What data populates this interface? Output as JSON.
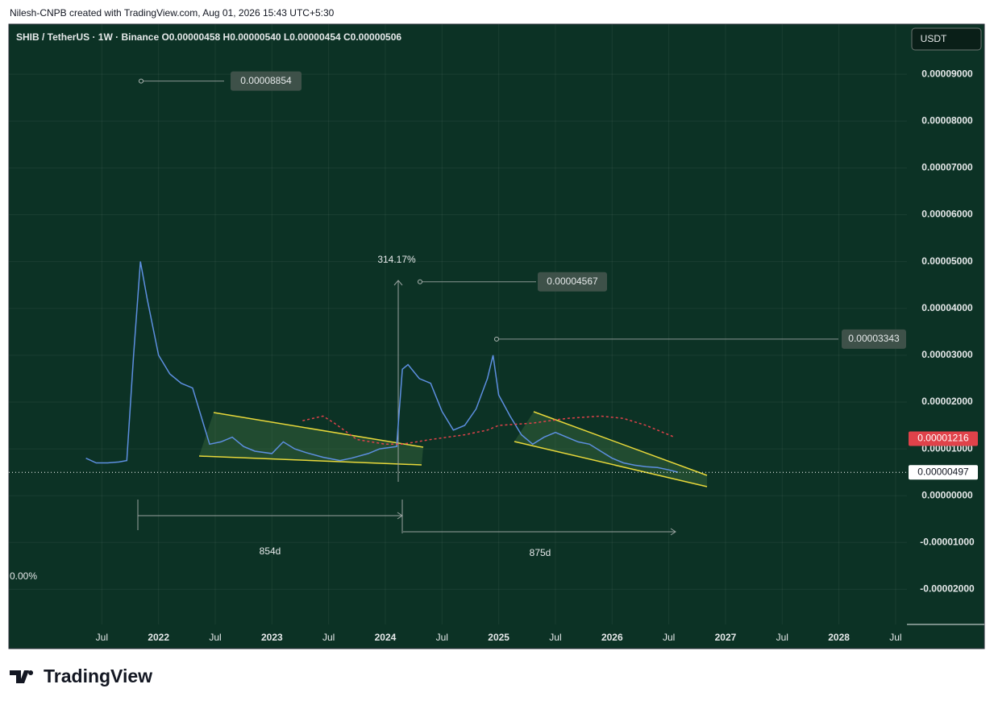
{
  "header": {
    "credit": "Nilesh-CNPB created with TradingView.com, Aug 01, 2026 15:43 UTC+5:30",
    "symbol": "SHIB / TetherUS · 1W · Binance  O0.00000458 H0.00000540 L0.00000454 C0.00000506",
    "currency": "USDT"
  },
  "footer": {
    "brand": "TradingView"
  },
  "chart_data": {
    "type": "line",
    "xlim": [
      2020.68,
      2028.6
    ],
    "ylim": [
      -2.75e-05,
      0.0001007
    ],
    "xticks": [
      {
        "value": 2021.5,
        "label": "Jul"
      },
      2022,
      {
        "value": 2022.5,
        "label": "Jul"
      },
      2023,
      {
        "value": 2023.5,
        "label": "Jul"
      },
      2024,
      {
        "value": 2024.5,
        "label": "Jul"
      },
      2025,
      {
        "value": 2025.5,
        "label": "Jul"
      },
      2026,
      {
        "value": 2026.5,
        "label": "Jul"
      },
      2027,
      {
        "value": 2027.5,
        "label": "Jul"
      },
      2028,
      {
        "value": 2028.5,
        "label": "Jul"
      }
    ],
    "yticks": [
      {
        "value": 9e-05,
        "label": "0.00009000"
      },
      {
        "value": 8e-05,
        "label": "0.00008000"
      },
      {
        "value": 7e-05,
        "label": "0.00007000"
      },
      {
        "value": 6e-05,
        "label": "0.00006000"
      },
      {
        "value": 5e-05,
        "label": "0.00005000"
      },
      {
        "value": 4e-05,
        "label": "0.00004000"
      },
      {
        "value": 3e-05,
        "label": "0.00003000"
      },
      {
        "value": 2e-05,
        "label": "0.00002000"
      },
      {
        "value": 1e-05,
        "label": "0.00001000"
      },
      {
        "value": 0,
        "label": "0.00000000"
      },
      {
        "value": -1e-05,
        "label": "-0.00001000"
      },
      {
        "value": -2e-05,
        "label": "-0.00002000"
      }
    ],
    "grid": true,
    "x": [
      2021.36,
      2021.45,
      2021.55,
      2021.65,
      2021.72,
      2021.78,
      2021.84,
      2021.9,
      2022.0,
      2022.1,
      2022.2,
      2022.3,
      2022.4,
      2022.45,
      2022.55,
      2022.65,
      2022.75,
      2022.85,
      2023.0,
      2023.1,
      2023.2,
      2023.3,
      2023.45,
      2023.6,
      2023.7,
      2023.85,
      2023.95,
      2024.1,
      2024.15,
      2024.2,
      2024.3,
      2024.4,
      2024.5,
      2024.6,
      2024.7,
      2024.8,
      2024.9,
      2024.95,
      2025.0,
      2025.1,
      2025.2,
      2025.3,
      2025.4,
      2025.5,
      2025.6,
      2025.7,
      2025.8,
      2025.9,
      2026.0,
      2026.1,
      2026.2,
      2026.3,
      2026.4,
      2026.5,
      2026.58
    ],
    "series": [
      {
        "color": "#5d8fe0",
        "values": [
          8e-06,
          7e-06,
          7e-06,
          7.2e-06,
          7.5e-06,
          3e-05,
          5e-05,
          4.2e-05,
          3e-05,
          2.6e-05,
          2.4e-05,
          2.3e-05,
          1.5e-05,
          1.1e-05,
          1.15e-05,
          1.25e-05,
          1.05e-05,
          9.5e-06,
          9e-06,
          1.15e-05,
          1e-05,
          9.2e-06,
          8.2e-06,
          7.5e-06,
          8e-06,
          9e-06,
          1e-05,
          1.05e-05,
          2.7e-05,
          2.8e-05,
          2.5e-05,
          2.4e-05,
          1.8e-05,
          1.4e-05,
          1.5e-05,
          1.85e-05,
          2.5e-05,
          3e-05,
          2.15e-05,
          1.7e-05,
          1.3e-05,
          1.1e-05,
          1.25e-05,
          1.35e-05,
          1.25e-05,
          1.15e-05,
          1.1e-05,
          9.5e-06,
          8e-06,
          7e-06,
          6.5e-06,
          6.2e-06,
          6e-06,
          5.5e-06,
          5e-06
        ]
      }
    ],
    "ma": {
      "color": "#e0424a",
      "x": [
        2023.27,
        2023.45,
        2023.55,
        2023.75,
        2024.0,
        2024.15,
        2024.4,
        2024.7,
        2024.9,
        2025.0,
        2025.3,
        2025.6,
        2025.9,
        2026.1,
        2026.3,
        2026.55
      ],
      "values": [
        1.6e-05,
        1.7e-05,
        1.55e-05,
        1.2e-05,
        1.1e-05,
        1.1e-05,
        1.2e-05,
        1.3e-05,
        1.4e-05,
        1.5e-05,
        1.55e-05,
        1.65e-05,
        1.7e-05,
        1.65e-05,
        1.5e-05,
        1.25e-05
      ]
    },
    "last_price": 4.97e-06,
    "ma_price": 1.216e-05,
    "price_notes": [
      8.854e-05,
      4.567e-05,
      3.343e-05
    ],
    "annotations": [
      "314.17%",
      "854d",
      "875d",
      "0.00%"
    ]
  }
}
